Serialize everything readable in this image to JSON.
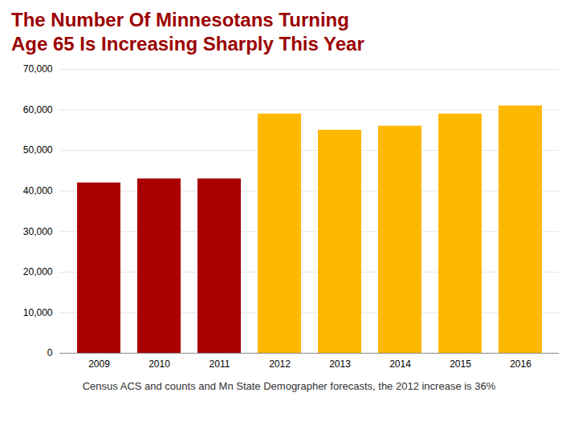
{
  "chart_data": {
    "type": "bar",
    "title": "The Number Of Minnesotans Turning",
    "subtitle": "Age 65 Is Increasing Sharply This Year",
    "caption": "Census ACS and counts and Mn State Demographer forecasts, the 2012 increase is 36%",
    "categories": [
      "2009",
      "2010",
      "2011",
      "2012",
      "2013",
      "2014",
      "2015",
      "2016"
    ],
    "values": [
      42000,
      43000,
      43000,
      59000,
      55000,
      56000,
      59000,
      61000
    ],
    "colors": [
      "#AA0000",
      "#AA0000",
      "#AA0000",
      "#FFB800",
      "#FFB800",
      "#FFB800",
      "#FFB800",
      "#FFB800"
    ],
    "ylim": [
      0,
      70000
    ],
    "yticks": [
      0,
      {
        "value": 10000,
        "label": "10,000"
      },
      {
        "value": 20000,
        "label": "20,000"
      },
      {
        "value": 30000,
        "label": "30,000"
      },
      {
        "value": 40000,
        "label": "40,000"
      },
      {
        "value": 50000,
        "label": "50,000"
      },
      {
        "value": 60000,
        "label": "60,000"
      },
      {
        "value": 70000,
        "label": "70,000"
      }
    ],
    "grid": true
  }
}
